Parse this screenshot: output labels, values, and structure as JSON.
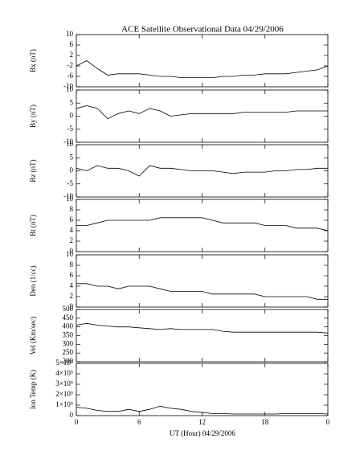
{
  "chart_data": [
    {
      "type": "line",
      "title": "ACE Satellite Observational Data  04/29/2006",
      "ylabel": "Bx (nT)",
      "x": [
        0,
        1,
        2,
        3,
        4,
        5,
        6,
        7,
        8,
        9,
        10,
        11,
        12,
        13,
        14,
        15,
        16,
        17,
        18,
        19,
        20,
        21,
        22,
        23,
        24
      ],
      "values": [
        -2,
        0,
        -3,
        -5.5,
        -5,
        -5,
        -5,
        -5.5,
        -6,
        -6,
        -6.5,
        -6.5,
        -6.5,
        -6.5,
        -6,
        -6,
        -5.5,
        -5.5,
        -5,
        -5,
        -5,
        -4.5,
        -4,
        -3.5,
        -2
      ],
      "ylim": [
        -10,
        10
      ],
      "yticks": [
        -10,
        -6,
        -2,
        2,
        6,
        10
      ],
      "color": "#000000"
    },
    {
      "type": "line",
      "ylabel": "By (nT)",
      "x": [
        0,
        1,
        2,
        3,
        4,
        5,
        6,
        7,
        8,
        9,
        10,
        11,
        12,
        13,
        14,
        15,
        16,
        17,
        18,
        19,
        20,
        21,
        22,
        23,
        24
      ],
      "values": [
        3,
        4,
        3,
        -1,
        1,
        2,
        1,
        3,
        2,
        0,
        0.5,
        1,
        1,
        1,
        1,
        1,
        1.5,
        1.5,
        1.5,
        1.5,
        1.5,
        2,
        2,
        2,
        2
      ],
      "ylim": [
        -10,
        10
      ],
      "yticks": [
        -10,
        -5,
        0,
        5,
        10
      ],
      "color": "#000000"
    },
    {
      "type": "line",
      "ylabel": "Bz (nT)",
      "x": [
        0,
        1,
        2,
        3,
        4,
        5,
        6,
        7,
        8,
        9,
        10,
        11,
        12,
        13,
        14,
        15,
        16,
        17,
        18,
        19,
        20,
        21,
        22,
        23,
        24
      ],
      "values": [
        1,
        0,
        2,
        1,
        1,
        0,
        -2,
        2,
        1,
        1,
        0.5,
        0,
        0,
        0,
        -0.5,
        -1,
        -0.5,
        -0.5,
        -0.5,
        0,
        0,
        0.5,
        0.5,
        1,
        1
      ],
      "ylim": [
        -10,
        10
      ],
      "yticks": [
        -10,
        -5,
        0,
        5,
        10
      ],
      "color": "#000000"
    },
    {
      "type": "line",
      "ylabel": "Bt (nT)",
      "x": [
        0,
        1,
        2,
        3,
        4,
        5,
        6,
        7,
        8,
        9,
        10,
        11,
        12,
        13,
        14,
        15,
        16,
        17,
        18,
        19,
        20,
        21,
        22,
        23,
        24
      ],
      "values": [
        5,
        5,
        5.5,
        6,
        6,
        6,
        6,
        6,
        6.5,
        6.5,
        6.5,
        6.5,
        6.5,
        6,
        5.5,
        5.5,
        5.5,
        5.5,
        5,
        5,
        5,
        4.5,
        4.5,
        4.5,
        4
      ],
      "ylim": [
        0,
        10
      ],
      "yticks": [
        0,
        2,
        4,
        6,
        8,
        10
      ],
      "color": "#000000"
    },
    {
      "type": "line",
      "ylabel": "Den (1/cc)",
      "x": [
        0,
        1,
        2,
        3,
        4,
        5,
        6,
        7,
        8,
        9,
        10,
        11,
        12,
        13,
        14,
        15,
        16,
        17,
        18,
        19,
        20,
        21,
        22,
        23,
        24
      ],
      "values": [
        4.5,
        4.5,
        4,
        4,
        3.5,
        4,
        4,
        4,
        3.5,
        3,
        3,
        3,
        3,
        2.5,
        2.5,
        2.5,
        2.5,
        2.5,
        2,
        2,
        2,
        2,
        2,
        1.5,
        1.5
      ],
      "ylim": [
        0,
        10
      ],
      "yticks": [
        0,
        2,
        4,
        6,
        8,
        10
      ],
      "color": "#000000"
    },
    {
      "type": "line",
      "ylabel": "Vel (Km/sec)",
      "x": [
        0,
        1,
        2,
        3,
        4,
        5,
        6,
        7,
        8,
        9,
        10,
        11,
        12,
        13,
        14,
        15,
        16,
        17,
        18,
        19,
        20,
        21,
        22,
        23,
        24
      ],
      "values": [
        410,
        420,
        410,
        405,
        400,
        400,
        395,
        390,
        385,
        390,
        385,
        385,
        385,
        385,
        375,
        370,
        370,
        370,
        370,
        370,
        370,
        370,
        370,
        370,
        365
      ],
      "ylim": [
        200,
        500
      ],
      "yticks": [
        200,
        250,
        300,
        350,
        400,
        450,
        500
      ],
      "color": "#000000"
    },
    {
      "type": "line",
      "ylabel": "Ion Temp (K)",
      "xlabel": "UT (Hour)  04/29/2006",
      "x": [
        0,
        1,
        2,
        3,
        4,
        5,
        6,
        7,
        8,
        9,
        10,
        11,
        12,
        13,
        14,
        15,
        16,
        17,
        18,
        19,
        20,
        21,
        22,
        23,
        24
      ],
      "values": [
        80000,
        70000,
        50000,
        40000,
        40000,
        60000,
        40000,
        60000,
        90000,
        70000,
        60000,
        40000,
        30000,
        20000,
        20000,
        15000,
        15000,
        15000,
        15000,
        15000,
        20000,
        20000,
        20000,
        20000,
        15000
      ],
      "ylim": [
        0,
        500000
      ],
      "yticks": [
        0,
        {
          "value": 100000,
          "label": "1×10⁵"
        },
        {
          "value": 200000,
          "label": "2×10⁵"
        },
        {
          "value": 300000,
          "label": "3×10⁵"
        },
        {
          "value": 400000,
          "label": "4×10⁵"
        },
        {
          "value": 500000,
          "label": "5×10⁵"
        }
      ],
      "xlim": [
        0,
        24
      ],
      "xticks": [
        0,
        6,
        12,
        18,
        {
          "value": 24,
          "label": "0"
        }
      ],
      "color": "#000000"
    }
  ]
}
